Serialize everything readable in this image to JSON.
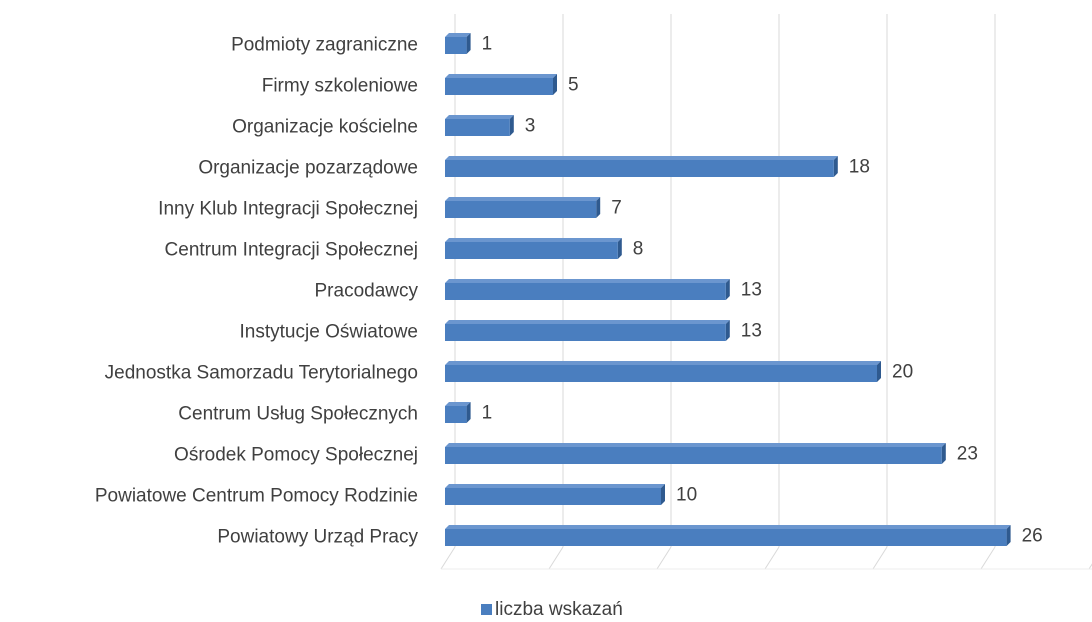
{
  "chart_data": {
    "type": "bar3d_horizontal",
    "categories": [
      "Podmioty zagraniczne",
      "Firmy szkoleniowe",
      "Organizacje kościelne",
      "Organizacje pozarządowe",
      "Inny Klub Integracji Społecznej",
      "Centrum Integracji Społecznej",
      "Pracodawcy",
      "Instytucje Oświatowe",
      "Jednostka Samorzadu Terytorialnego",
      "Centrum Usług Społecznych",
      "Ośrodek Pomocy Społecznej",
      "Powiatowe Centrum Pomocy Rodzinie",
      "Powiatowy Urząd Pracy"
    ],
    "series": [
      {
        "name": "liczba wskazań",
        "color": "#4a7ebf",
        "values": [
          1,
          5,
          3,
          18,
          7,
          8,
          13,
          13,
          20,
          1,
          23,
          10,
          26
        ]
      }
    ],
    "xlim": [
      0,
      30
    ],
    "xticks": [
      0,
      5,
      10,
      15,
      20,
      25,
      30
    ],
    "grid": true,
    "legend": "bottom"
  }
}
